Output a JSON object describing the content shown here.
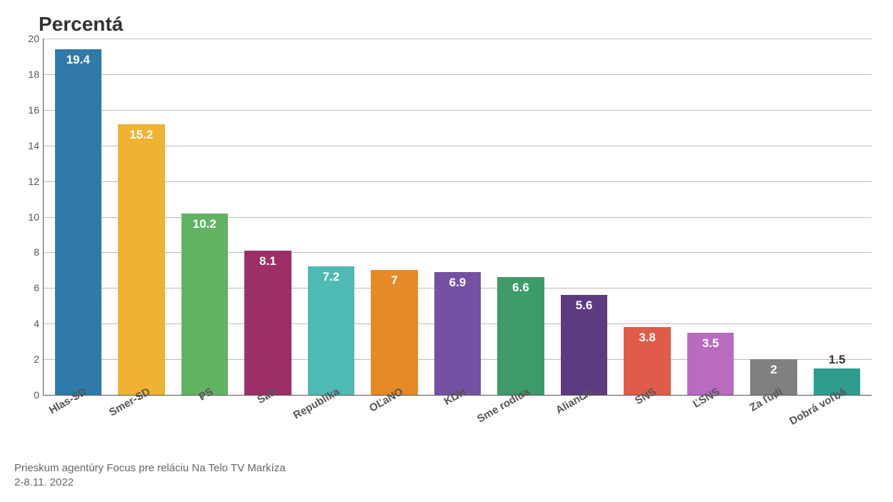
{
  "chart": {
    "type": "bar",
    "title": "Percentá",
    "title_fontsize": 28,
    "title_color": "#333333",
    "background_color": "#ffffff",
    "axis_color": "#555555",
    "grid_color": "#777777",
    "label_color": "#555555",
    "xlabel_fontsize": 15,
    "ylabel_fontsize": 14,
    "value_fontsize": 17,
    "value_fontweight": 700,
    "ylim": [
      0,
      20
    ],
    "ytick_step": 2,
    "yticks": [
      "0",
      "2",
      "4",
      "6",
      "8",
      "10",
      "12",
      "14",
      "16",
      "18",
      "20"
    ],
    "bar_width": 0.74,
    "series": [
      {
        "label": "Hlas-SD",
        "value": 19.4,
        "display": "19.4",
        "color": "#2f7aa8",
        "text_color": "#ffffff",
        "text_inside": true
      },
      {
        "label": "Smer-SD",
        "value": 15.2,
        "display": "15.2",
        "color": "#efb233",
        "text_color": "#ffffff",
        "text_inside": true
      },
      {
        "label": "PS",
        "value": 10.2,
        "display": "10.2",
        "color": "#62b263",
        "text_color": "#ffffff",
        "text_inside": true
      },
      {
        "label": "SaS",
        "value": 8.1,
        "display": "8.1",
        "color": "#9c2f68",
        "text_color": "#ffffff",
        "text_inside": true
      },
      {
        "label": "Republika",
        "value": 7.2,
        "display": "7.2",
        "color": "#4fb9b3",
        "text_color": "#ffffff",
        "text_inside": true
      },
      {
        "label": "OĽaNO",
        "value": 7.0,
        "display": "7",
        "color": "#e58a26",
        "text_color": "#ffffff",
        "text_inside": true
      },
      {
        "label": "KDH",
        "value": 6.9,
        "display": "6.9",
        "color": "#7451a3",
        "text_color": "#ffffff",
        "text_inside": true
      },
      {
        "label": "Sme rodina",
        "value": 6.6,
        "display": "6.6",
        "color": "#3f9a6a",
        "text_color": "#ffffff",
        "text_inside": true
      },
      {
        "label": "Aliancia",
        "value": 5.6,
        "display": "5.6",
        "color": "#5e3b80",
        "text_color": "#ffffff",
        "text_inside": true
      },
      {
        "label": "SNS",
        "value": 3.8,
        "display": "3.8",
        "color": "#df5b4a",
        "text_color": "#ffffff",
        "text_inside": true
      },
      {
        "label": "ĽSNS",
        "value": 3.5,
        "display": "3.5",
        "color": "#b86bbf",
        "text_color": "#ffffff",
        "text_inside": true
      },
      {
        "label": "Za ľudí",
        "value": 2.0,
        "display": "2",
        "color": "#808080",
        "text_color": "#ffffff",
        "text_inside": true
      },
      {
        "label": "Dobrá voľbá",
        "value": 1.5,
        "display": "1.5",
        "color": "#2f9d8d",
        "text_color": "#333333",
        "text_inside": false
      }
    ]
  },
  "caption": {
    "line1": "Prieskum agentúry Focus pre reláciu Na Telo TV Markíza",
    "line2": "2-8.11. 2022",
    "fontsize": 15,
    "color": "#666666"
  }
}
